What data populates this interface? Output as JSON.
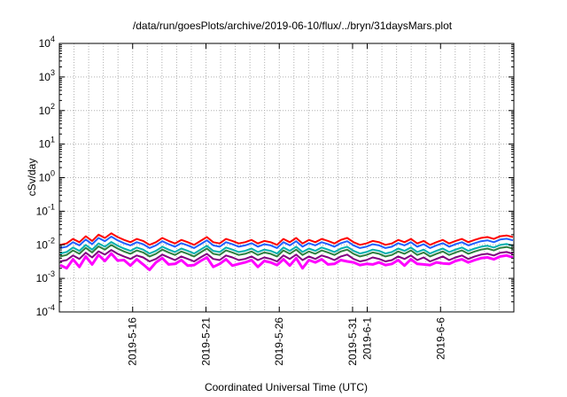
{
  "chart_data": {
    "type": "line",
    "title": "/data/run/goesPlots/archive/2019-06-10/flux/../bryn/31daysMars.plot",
    "xlabel": "Coordinated Universal Time (UTC)",
    "ylabel": "cSv/day",
    "yscale": "log",
    "ylim": [
      0.0001,
      10000
    ],
    "yticks": [
      {
        "base": "10",
        "exp": "-4"
      },
      {
        "base": "10",
        "exp": "-3"
      },
      {
        "base": "10",
        "exp": "-2"
      },
      {
        "base": "10",
        "exp": "-1"
      },
      {
        "base": "10",
        "exp": "0"
      },
      {
        "base": "10",
        "exp": "1"
      },
      {
        "base": "10",
        "exp": "2"
      },
      {
        "base": "10",
        "exp": "3"
      },
      {
        "base": "10",
        "exp": "4"
      }
    ],
    "xlim": [
      "2019-05-11",
      "2019-06-11"
    ],
    "xticks": [
      "2019-5-16",
      "2019-5-21",
      "2019-5-26",
      "2019-5-31",
      "2019-6-1",
      "2019-6-6"
    ],
    "grid": true,
    "legend": "none",
    "colors": [
      "#ff0000",
      "#2060ff",
      "#00b0b0",
      "#308040",
      "#800080",
      "#ff00ff"
    ],
    "series": [
      {
        "values": [
          0.01,
          0.011,
          0.015,
          0.012,
          0.018,
          0.013,
          0.02,
          0.016,
          0.022,
          0.017,
          0.014,
          0.012,
          0.015,
          0.013,
          0.01,
          0.012,
          0.016,
          0.013,
          0.011,
          0.014,
          0.012,
          0.01,
          0.013,
          0.017,
          0.012,
          0.011,
          0.015,
          0.013,
          0.011,
          0.012,
          0.014,
          0.011,
          0.013,
          0.012,
          0.01,
          0.015,
          0.012,
          0.016,
          0.011,
          0.014,
          0.012,
          0.015,
          0.013,
          0.011,
          0.014,
          0.016,
          0.012,
          0.01,
          0.011,
          0.013,
          0.012,
          0.01,
          0.011,
          0.014,
          0.012,
          0.015,
          0.011,
          0.013,
          0.01,
          0.012,
          0.014,
          0.011,
          0.013,
          0.015,
          0.012,
          0.014,
          0.016,
          0.017,
          0.015,
          0.018,
          0.019,
          0.017
        ]
      },
      {
        "values": [
          0.008,
          0.0088,
          0.012,
          0.0096,
          0.0144,
          0.0104,
          0.016,
          0.0128,
          0.0176,
          0.0136,
          0.0112,
          0.0096,
          0.012,
          0.0104,
          0.008,
          0.0096,
          0.0128,
          0.0104,
          0.0088,
          0.0112,
          0.0096,
          0.008,
          0.0104,
          0.0136,
          0.0096,
          0.0088,
          0.012,
          0.0104,
          0.0088,
          0.0096,
          0.0112,
          0.0088,
          0.0104,
          0.0096,
          0.008,
          0.012,
          0.0096,
          0.0128,
          0.0088,
          0.0112,
          0.0096,
          0.012,
          0.0104,
          0.0088,
          0.0112,
          0.0128,
          0.0096,
          0.008,
          0.0088,
          0.0104,
          0.0096,
          0.008,
          0.0088,
          0.0112,
          0.0096,
          0.012,
          0.0088,
          0.0104,
          0.008,
          0.0096,
          0.0112,
          0.0088,
          0.0104,
          0.012,
          0.0096,
          0.0112,
          0.0128,
          0.0136,
          0.012,
          0.0144,
          0.0152,
          0.0136
        ]
      },
      {
        "values": [
          0.0055,
          0.0061,
          0.0083,
          0.0066,
          0.0099,
          0.0072,
          0.011,
          0.0088,
          0.0121,
          0.0094,
          0.0077,
          0.0066,
          0.0083,
          0.0072,
          0.0055,
          0.0066,
          0.0088,
          0.0072,
          0.0061,
          0.0077,
          0.0066,
          0.0055,
          0.0072,
          0.0094,
          0.0066,
          0.0061,
          0.0083,
          0.0072,
          0.0061,
          0.0066,
          0.0077,
          0.0061,
          0.0072,
          0.0066,
          0.0055,
          0.0083,
          0.0066,
          0.0088,
          0.0061,
          0.0077,
          0.0066,
          0.0083,
          0.0072,
          0.0061,
          0.0077,
          0.0088,
          0.0066,
          0.0055,
          0.0061,
          0.0072,
          0.0066,
          0.0055,
          0.0061,
          0.0077,
          0.0066,
          0.0083,
          0.0061,
          0.0072,
          0.0055,
          0.0066,
          0.0077,
          0.0061,
          0.0072,
          0.0083,
          0.0066,
          0.0077,
          0.0088,
          0.0094,
          0.0083,
          0.0099,
          0.0105,
          0.0094
        ]
      },
      {
        "values": [
          0.0045,
          0.005,
          0.0068,
          0.0054,
          0.0081,
          0.0059,
          0.009,
          0.0072,
          0.0099,
          0.0077,
          0.0063,
          0.0054,
          0.0068,
          0.0059,
          0.0045,
          0.0054,
          0.0072,
          0.0059,
          0.005,
          0.0063,
          0.0054,
          0.0045,
          0.0059,
          0.0077,
          0.0054,
          0.005,
          0.0068,
          0.0059,
          0.005,
          0.0054,
          0.0063,
          0.005,
          0.0059,
          0.0054,
          0.0045,
          0.0068,
          0.0054,
          0.0072,
          0.005,
          0.0063,
          0.0054,
          0.0068,
          0.0059,
          0.005,
          0.0063,
          0.0072,
          0.0054,
          0.0045,
          0.005,
          0.0059,
          0.0054,
          0.0045,
          0.005,
          0.0063,
          0.0054,
          0.0068,
          0.005,
          0.0059,
          0.0045,
          0.0054,
          0.0063,
          0.005,
          0.0059,
          0.0068,
          0.0054,
          0.0063,
          0.0072,
          0.0077,
          0.0068,
          0.0081,
          0.0086,
          0.0077
        ]
      },
      {
        "values": [
          0.0032,
          0.0035,
          0.0048,
          0.0038,
          0.0058,
          0.0042,
          0.0064,
          0.0051,
          0.007,
          0.0054,
          0.0045,
          0.0038,
          0.0048,
          0.0042,
          0.0032,
          0.0038,
          0.0051,
          0.0042,
          0.0035,
          0.0045,
          0.0038,
          0.0032,
          0.0042,
          0.0054,
          0.0038,
          0.0035,
          0.0048,
          0.0042,
          0.0035,
          0.0038,
          0.0045,
          0.0035,
          0.0042,
          0.0038,
          0.0032,
          0.0048,
          0.0038,
          0.0051,
          0.0035,
          0.0045,
          0.0038,
          0.0048,
          0.0042,
          0.0035,
          0.0045,
          0.0051,
          0.0038,
          0.0032,
          0.0035,
          0.0042,
          0.0038,
          0.0032,
          0.0035,
          0.0045,
          0.0038,
          0.0048,
          0.0035,
          0.0042,
          0.0032,
          0.0038,
          0.0045,
          0.0035,
          0.0042,
          0.0048,
          0.0038,
          0.0045,
          0.0051,
          0.0054,
          0.0048,
          0.0058,
          0.0061,
          0.0054
        ]
      },
      {
        "values": [
          0.0025,
          0.002,
          0.0037,
          0.0022,
          0.0045,
          0.0026,
          0.005,
          0.0033,
          0.0055,
          0.0034,
          0.0035,
          0.0024,
          0.0037,
          0.0026,
          0.0018,
          0.003,
          0.004,
          0.0026,
          0.0027,
          0.0035,
          0.0024,
          0.0025,
          0.0033,
          0.0042,
          0.0022,
          0.0027,
          0.0037,
          0.0024,
          0.0027,
          0.003,
          0.0035,
          0.0022,
          0.0033,
          0.003,
          0.0025,
          0.0037,
          0.0024,
          0.004,
          0.002,
          0.0035,
          0.003,
          0.0037,
          0.0026,
          0.0027,
          0.0035,
          0.0032,
          0.003,
          0.0025,
          0.0027,
          0.0026,
          0.003,
          0.0025,
          0.0027,
          0.0035,
          0.0024,
          0.0037,
          0.0027,
          0.0026,
          0.0025,
          0.003,
          0.0028,
          0.0027,
          0.0033,
          0.0037,
          0.003,
          0.0035,
          0.004,
          0.0042,
          0.0037,
          0.0045,
          0.0048,
          0.0042
        ]
      }
    ]
  }
}
